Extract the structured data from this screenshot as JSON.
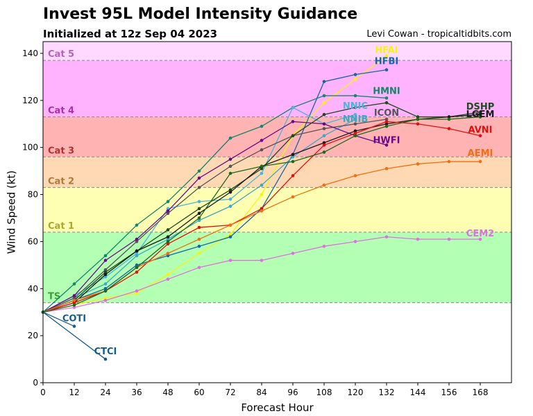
{
  "header": {
    "title": "Invest 95L Model Intensity Guidance",
    "subtitle": "Initialized at 12z Sep 04 2023",
    "credit": "Levi Cowan - tropicaltidbits.com"
  },
  "chart_data": {
    "type": "line",
    "title": "Invest 95L Model Intensity Guidance",
    "subtitle": "Initialized at 12z Sep 04 2023",
    "xlabel": "Forecast Hour",
    "ylabel": "Wind Speed (kt)",
    "xlim": [
      0,
      180
    ],
    "ylim": [
      0,
      145
    ],
    "xticks": [
      0,
      12,
      24,
      36,
      48,
      60,
      72,
      84,
      96,
      108,
      120,
      132,
      144,
      156,
      168
    ],
    "yticks": [
      0,
      20,
      40,
      60,
      80,
      100,
      120,
      140
    ],
    "grid": false,
    "bands": [
      {
        "label": "TS",
        "min": 34,
        "max": 64,
        "color": "#b3ffb3",
        "label_color": "#3c9e3c"
      },
      {
        "label": "Cat 1",
        "min": 64,
        "max": 83,
        "color": "#ffffb3",
        "label_color": "#a8a832"
      },
      {
        "label": "Cat 2",
        "min": 83,
        "max": 96,
        "color": "#ffd9b3",
        "label_color": "#b07a3c"
      },
      {
        "label": "Cat 3",
        "min": 96,
        "max": 113,
        "color": "#ffb3b3",
        "label_color": "#b03232"
      },
      {
        "label": "Cat 4",
        "min": 113,
        "max": 137,
        "color": "#ffb3ff",
        "label_color": "#a832a8"
      },
      {
        "label": "Cat 5",
        "min": 137,
        "max": 145,
        "color": "#ffd9ff",
        "label_color": "#b466b4"
      }
    ],
    "series": [
      {
        "name": "HFAI",
        "color": "#f5f50a",
        "x": [
          0,
          12,
          24,
          36,
          48,
          60,
          72,
          84,
          96,
          108,
          120,
          132
        ],
        "y": [
          30,
          33,
          36,
          38,
          46,
          55,
          63,
          80,
          105,
          119,
          129,
          139
        ]
      },
      {
        "name": "HFBI",
        "color": "#1565a8",
        "x": [
          0,
          12,
          24,
          36,
          48,
          60,
          72,
          84,
          96,
          108,
          120,
          132
        ],
        "y": [
          30,
          35,
          40,
          50,
          54,
          58,
          62,
          74,
          97,
          128,
          131,
          133
        ]
      },
      {
        "name": "HMNI",
        "color": "#14866a",
        "x": [
          0,
          12,
          24,
          36,
          48,
          60,
          72,
          84,
          96,
          108,
          120,
          132
        ],
        "y": [
          30,
          42,
          54,
          67,
          77,
          90,
          104,
          109,
          117,
          122,
          122,
          121
        ]
      },
      {
        "name": "NNIC",
        "color": "#4ab3e0",
        "x": [
          0,
          12,
          24,
          36,
          48,
          60,
          72,
          84,
          96,
          108,
          120
        ],
        "y": [
          30,
          37,
          45,
          55,
          74,
          77,
          78,
          89,
          117,
          110,
          114
        ]
      },
      {
        "name": "NNIB",
        "color": "#3aa8c8",
        "x": [
          0,
          12,
          24,
          36,
          48,
          60,
          72,
          84,
          96,
          108,
          120
        ],
        "y": [
          30,
          36,
          42,
          54,
          61,
          69,
          75,
          84,
          96,
          105,
          112
        ]
      },
      {
        "name": "ICON",
        "color": "#555555",
        "x": [
          0,
          12,
          24,
          36,
          48,
          60,
          72,
          84,
          96,
          108,
          120,
          132
        ],
        "y": [
          30,
          36,
          48,
          60,
          72,
          83,
          92,
          99,
          105,
          108,
          110,
          112
        ]
      },
      {
        "name": "HWFI",
        "color": "#6a0a8a",
        "x": [
          0,
          12,
          24,
          36,
          48,
          60,
          72,
          84,
          96,
          108,
          120,
          132
        ],
        "y": [
          30,
          37,
          52,
          61,
          73,
          87,
          95,
          103,
          111,
          110,
          105,
          101
        ]
      },
      {
        "name": "DSHP",
        "color": "#1f4a1f",
        "x": [
          0,
          12,
          24,
          36,
          48,
          60,
          72,
          84,
          96,
          108,
          120,
          132,
          144,
          156,
          168
        ],
        "y": [
          30,
          35,
          47,
          56,
          65,
          74,
          82,
          91,
          105,
          114,
          117,
          119,
          113,
          113,
          115
        ]
      },
      {
        "name": "LGEM",
        "color": "#1a1a1a",
        "x": [
          0,
          12,
          24,
          36,
          48,
          60,
          72,
          84,
          96,
          108,
          120,
          132,
          144,
          156,
          168
        ],
        "y": [
          30,
          34,
          46,
          56,
          62,
          72,
          81,
          92,
          97,
          102,
          107,
          110,
          112,
          113,
          114
        ]
      },
      {
        "name": "AVNI",
        "color": "#e01010",
        "x": [
          0,
          12,
          24,
          36,
          48,
          60,
          72,
          84,
          96,
          108,
          120,
          132,
          144,
          156,
          168
        ],
        "y": [
          30,
          34,
          39,
          47,
          59,
          66,
          67,
          74,
          88,
          101,
          106,
          111,
          110,
          108,
          105
        ]
      },
      {
        "name": "AEMI",
        "color": "#f07010",
        "x": [
          0,
          12,
          24,
          36,
          48,
          60,
          72,
          84,
          96,
          108,
          120,
          132,
          144,
          156,
          168
        ],
        "y": [
          30,
          35,
          39,
          49,
          55,
          61,
          67,
          73,
          79,
          84,
          88,
          91,
          93,
          94,
          94
        ]
      },
      {
        "name": "CEM2",
        "color": "#e070e0",
        "x": [
          0,
          12,
          24,
          36,
          48,
          60,
          72,
          84,
          96,
          108,
          120,
          132,
          144,
          156,
          168
        ],
        "y": [
          30,
          32,
          35,
          39,
          44,
          49,
          52,
          52,
          55,
          58,
          60,
          62,
          61,
          61,
          61
        ]
      },
      {
        "name": "COTI",
        "color": "#1a5e8a",
        "x": [
          0,
          12
        ],
        "y": [
          30,
          24
        ]
      },
      {
        "name": "CTCI",
        "color": "#0f5c8c",
        "x": [
          0,
          24
        ],
        "y": [
          30,
          10
        ]
      },
      {
        "name": "",
        "color": "#1b6b1b",
        "x": [
          0,
          12,
          24,
          36,
          48,
          60,
          72,
          84,
          96,
          108,
          120,
          132,
          144,
          156,
          168
        ],
        "y": [
          30,
          33,
          39,
          49,
          60,
          70,
          89,
          92,
          94,
          98,
          105,
          109,
          112,
          112,
          113
        ]
      }
    ]
  }
}
